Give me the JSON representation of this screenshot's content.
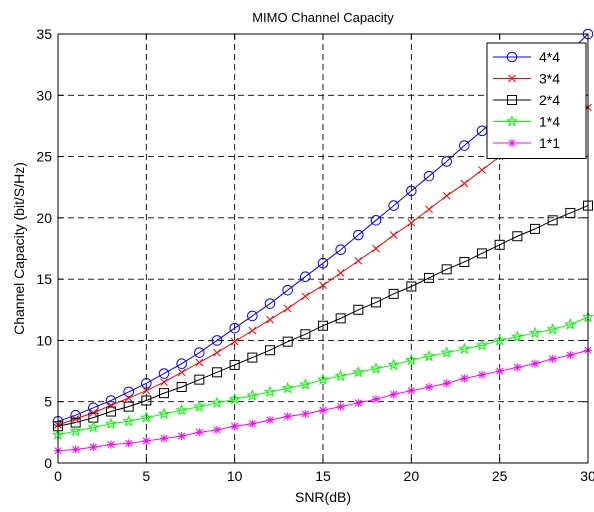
{
  "chart_data": {
    "type": "line",
    "title": "MIMO Channel Capacity",
    "xlabel": "SNR(dB)",
    "ylabel": "Channel Capacity (bit/S/Hz)",
    "xlim": [
      0,
      30
    ],
    "ylim": [
      0,
      35
    ],
    "xticks": [
      "0",
      "5",
      "10",
      "15",
      "20",
      "25",
      "30"
    ],
    "yticks": [
      "0",
      "5",
      "10",
      "15",
      "20",
      "25",
      "30",
      "35"
    ],
    "grid": true,
    "legend_position": "top-right",
    "x": [
      0,
      1,
      2,
      3,
      4,
      5,
      6,
      7,
      8,
      9,
      10,
      11,
      12,
      13,
      14,
      15,
      16,
      17,
      18,
      19,
      20,
      21,
      22,
      23,
      24,
      25,
      26,
      27,
      28,
      29,
      30
    ],
    "series": [
      {
        "name": "4*4",
        "color": "#0000ff",
        "marker": "circle",
        "values": [
          3.4,
          3.9,
          4.5,
          5.1,
          5.8,
          6.5,
          7.3,
          8.1,
          9.0,
          10.0,
          11.0,
          12.0,
          13.0,
          14.1,
          15.2,
          16.3,
          17.4,
          18.6,
          19.8,
          21.0,
          22.2,
          23.4,
          24.6,
          25.9,
          27.1,
          28.4,
          29.7,
          31.0,
          32.3,
          33.6,
          35.0
        ]
      },
      {
        "name": "3*4",
        "color": "#ff0000",
        "marker": "x",
        "values": [
          3.1,
          3.6,
          4.1,
          4.7,
          5.3,
          5.9,
          6.6,
          7.4,
          8.2,
          9.0,
          9.9,
          10.8,
          11.7,
          12.6,
          13.6,
          14.5,
          15.5,
          16.5,
          17.5,
          18.6,
          19.6,
          20.7,
          21.8,
          22.8,
          23.9,
          25.0,
          26.1,
          27.2,
          28.3,
          28.7,
          29.0
        ]
      },
      {
        "name": "2*4",
        "color": "#000000",
        "marker": "square",
        "values": [
          3.0,
          3.3,
          3.7,
          4.2,
          4.6,
          5.1,
          5.7,
          6.2,
          6.8,
          7.4,
          8.0,
          8.6,
          9.2,
          9.9,
          10.5,
          11.2,
          11.8,
          12.5,
          13.1,
          13.8,
          14.4,
          15.1,
          15.8,
          16.4,
          17.1,
          17.8,
          18.5,
          19.1,
          19.8,
          20.4,
          21.0
        ]
      },
      {
        "name": "1*4",
        "color": "#00ff00",
        "marker": "star",
        "values": [
          2.3,
          2.6,
          2.9,
          3.2,
          3.4,
          3.7,
          4.0,
          4.3,
          4.6,
          4.9,
          5.2,
          5.5,
          5.8,
          6.1,
          6.4,
          6.8,
          7.1,
          7.4,
          7.7,
          8.0,
          8.4,
          8.7,
          9.0,
          9.3,
          9.6,
          10.0,
          10.3,
          10.6,
          10.9,
          11.3,
          11.9
        ]
      },
      {
        "name": "1*1",
        "color": "#ff00ff",
        "marker": "asterisk",
        "values": [
          1.0,
          1.1,
          1.3,
          1.5,
          1.6,
          1.8,
          2.0,
          2.2,
          2.5,
          2.7,
          3.0,
          3.2,
          3.5,
          3.8,
          4.0,
          4.3,
          4.6,
          4.9,
          5.2,
          5.6,
          5.9,
          6.2,
          6.5,
          6.9,
          7.2,
          7.5,
          7.8,
          8.1,
          8.5,
          8.8,
          9.2
        ]
      }
    ]
  }
}
